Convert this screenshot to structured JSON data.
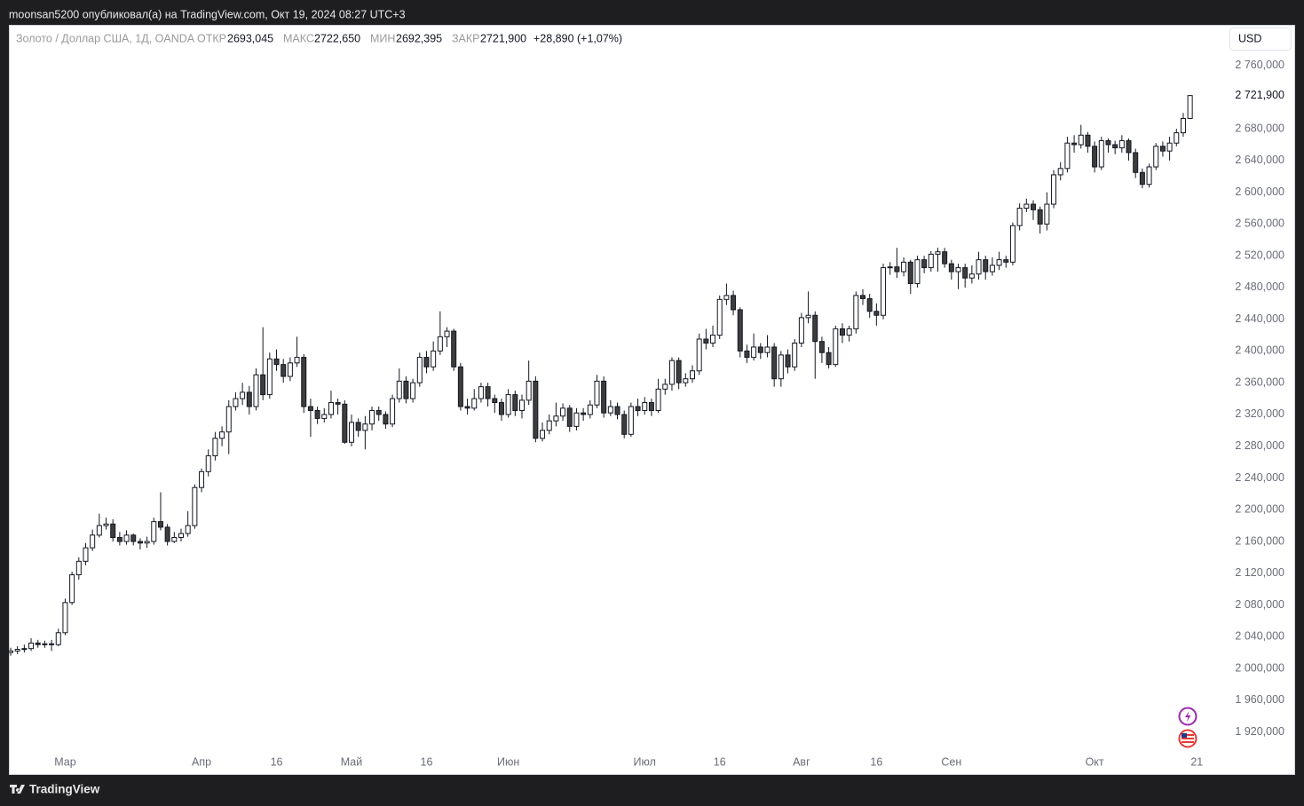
{
  "header": {
    "text": "moonsan5200 опубликовал(а) на TradingView.com, Окт 19, 2024 08:27 UTC+3"
  },
  "chart_data": {
    "type": "candlestick",
    "symbol": "Золото / Доллар США, 1Д, OANDA",
    "currency": "USD",
    "legend": {
      "open_label": "ОТКР",
      "open": {
        "value": 2693.045,
        "label": "2693,045"
      },
      "high_label": "МАКС",
      "high": {
        "value": 2722.65,
        "label": "2722,650"
      },
      "low_label": "МИН",
      "low": {
        "value": 2692.395,
        "label": "2692,395"
      },
      "close_label": "ЗАКР",
      "close": {
        "value": 2721.9,
        "label": "2721,900"
      },
      "change": {
        "value": 28.89,
        "label": "+28,890 (+1,07%)"
      }
    },
    "last_price": {
      "value": 2721.9,
      "label": "2 721,900"
    },
    "up_color": "#ffffff",
    "down_color": "#3d3d3d",
    "wick_color": "#131722",
    "grid": false,
    "open": [
      2020,
      2022,
      2024,
      2025,
      2032,
      2030,
      2031,
      2030,
      2045,
      2083,
      2118,
      2135,
      2152,
      2168,
      2180,
      2182,
      2165,
      2160,
      2168,
      2160,
      2158,
      2160,
      2185,
      2178,
      2160,
      2165,
      2170,
      2180,
      2228,
      2248,
      2268,
      2290,
      2298,
      2330,
      2340,
      2348,
      2330,
      2370,
      2345,
      2390,
      2383,
      2368,
      2385,
      2392,
      2330,
      2325,
      2315,
      2320,
      2335,
      2333,
      2285,
      2310,
      2300,
      2308,
      2325,
      2320,
      2308,
      2340,
      2362,
      2340,
      2360,
      2392,
      2380,
      2400,
      2418,
      2425,
      2380,
      2330,
      2328,
      2340,
      2355,
      2340,
      2335,
      2320,
      2345,
      2325,
      2338,
      2362,
      2290,
      2300,
      2312,
      2318,
      2328,
      2305,
      2322,
      2320,
      2332,
      2362,
      2322,
      2330,
      2320,
      2295,
      2330,
      2325,
      2335,
      2325,
      2352,
      2358,
      2388,
      2360,
      2365,
      2375,
      2415,
      2410,
      2420,
      2465,
      2470,
      2452,
      2400,
      2392,
      2405,
      2398,
      2405,
      2365,
      2395,
      2380,
      2410,
      2442,
      2445,
      2412,
      2398,
      2383,
      2428,
      2420,
      2428,
      2470,
      2466,
      2450,
      2445,
      2505,
      2506,
      2500,
      2512,
      2485,
      2515,
      2505,
      2522,
      2525,
      2510,
      2500,
      2505,
      2492,
      2497,
      2515,
      2500,
      2508,
      2515,
      2512,
      2558,
      2580,
      2585,
      2578,
      2560,
      2585,
      2622,
      2630,
      2662,
      2660,
      2672,
      2658,
      2632,
      2665,
      2660,
      2656,
      2665,
      2650,
      2625,
      2610,
      2632,
      2658,
      2652,
      2662,
      2675,
      2693.045
    ],
    "high": [
      2026,
      2028,
      2030,
      2038,
      2036,
      2035,
      2036,
      2050,
      2088,
      2122,
      2140,
      2158,
      2175,
      2195,
      2190,
      2188,
      2172,
      2174,
      2170,
      2164,
      2166,
      2190,
      2222,
      2182,
      2172,
      2176,
      2198,
      2232,
      2252,
      2276,
      2298,
      2305,
      2338,
      2348,
      2360,
      2356,
      2378,
      2430,
      2398,
      2402,
      2390,
      2392,
      2418,
      2396,
      2340,
      2330,
      2328,
      2350,
      2340,
      2338,
      2320,
      2315,
      2318,
      2330,
      2330,
      2324,
      2345,
      2378,
      2368,
      2365,
      2398,
      2400,
      2412,
      2450,
      2430,
      2428,
      2385,
      2340,
      2352,
      2360,
      2360,
      2345,
      2340,
      2352,
      2350,
      2345,
      2388,
      2368,
      2310,
      2320,
      2335,
      2334,
      2332,
      2328,
      2328,
      2338,
      2370,
      2368,
      2338,
      2335,
      2325,
      2335,
      2340,
      2342,
      2340,
      2365,
      2365,
      2392,
      2392,
      2372,
      2382,
      2422,
      2428,
      2432,
      2470,
      2485,
      2476,
      2455,
      2408,
      2422,
      2410,
      2420,
      2410,
      2400,
      2402,
      2415,
      2448,
      2475,
      2450,
      2418,
      2405,
      2432,
      2435,
      2432,
      2475,
      2478,
      2472,
      2460,
      2510,
      2512,
      2530,
      2518,
      2515,
      2520,
      2520,
      2526,
      2530,
      2530,
      2515,
      2510,
      2510,
      2508,
      2525,
      2520,
      2518,
      2525,
      2520,
      2562,
      2586,
      2592,
      2590,
      2582,
      2600,
      2628,
      2638,
      2670,
      2672,
      2685,
      2676,
      2664,
      2670,
      2668,
      2665,
      2672,
      2668,
      2655,
      2630,
      2636,
      2662,
      2664,
      2670,
      2680,
      2700,
      2722.65
    ],
    "low": [
      2016,
      2018,
      2020,
      2022,
      2026,
      2026,
      2022,
      2028,
      2042,
      2080,
      2112,
      2130,
      2148,
      2165,
      2175,
      2160,
      2155,
      2156,
      2155,
      2150,
      2152,
      2156,
      2174,
      2155,
      2158,
      2160,
      2166,
      2176,
      2222,
      2242,
      2262,
      2280,
      2270,
      2325,
      2332,
      2320,
      2325,
      2338,
      2340,
      2375,
      2360,
      2362,
      2380,
      2322,
      2292,
      2308,
      2310,
      2315,
      2320,
      2283,
      2280,
      2292,
      2276,
      2300,
      2312,
      2302,
      2304,
      2335,
      2334,
      2335,
      2355,
      2372,
      2375,
      2395,
      2405,
      2375,
      2325,
      2320,
      2325,
      2335,
      2330,
      2322,
      2312,
      2316,
      2318,
      2315,
      2332,
      2285,
      2286,
      2295,
      2305,
      2312,
      2298,
      2300,
      2312,
      2315,
      2328,
      2316,
      2318,
      2314,
      2290,
      2292,
      2318,
      2320,
      2318,
      2322,
      2345,
      2350,
      2352,
      2355,
      2360,
      2370,
      2402,
      2405,
      2415,
      2458,
      2445,
      2392,
      2385,
      2388,
      2390,
      2392,
      2355,
      2355,
      2372,
      2375,
      2405,
      2435,
      2365,
      2385,
      2378,
      2380,
      2410,
      2412,
      2422,
      2458,
      2442,
      2432,
      2440,
      2496,
      2492,
      2494,
      2472,
      2480,
      2498,
      2500,
      2500,
      2505,
      2490,
      2478,
      2480,
      2485,
      2490,
      2490,
      2495,
      2502,
      2505,
      2508,
      2552,
      2575,
      2565,
      2548,
      2552,
      2580,
      2615,
      2625,
      2650,
      2655,
      2650,
      2625,
      2628,
      2650,
      2648,
      2650,
      2640,
      2618,
      2605,
      2606,
      2628,
      2645,
      2640,
      2658,
      2670,
      2692.395
    ],
    "close": [
      2022,
      2024,
      2025,
      2032,
      2030,
      2031,
      2030,
      2045,
      2083,
      2118,
      2135,
      2152,
      2168,
      2180,
      2182,
      2165,
      2160,
      2168,
      2160,
      2158,
      2160,
      2185,
      2178,
      2160,
      2165,
      2170,
      2180,
      2228,
      2248,
      2268,
      2290,
      2298,
      2330,
      2340,
      2348,
      2330,
      2370,
      2345,
      2390,
      2383,
      2368,
      2385,
      2392,
      2330,
      2325,
      2315,
      2320,
      2335,
      2333,
      2285,
      2310,
      2300,
      2308,
      2325,
      2320,
      2308,
      2340,
      2362,
      2340,
      2360,
      2392,
      2380,
      2400,
      2418,
      2425,
      2380,
      2330,
      2328,
      2340,
      2355,
      2340,
      2335,
      2320,
      2345,
      2325,
      2338,
      2362,
      2290,
      2300,
      2312,
      2318,
      2328,
      2305,
      2322,
      2320,
      2332,
      2362,
      2322,
      2330,
      2320,
      2295,
      2330,
      2325,
      2335,
      2325,
      2352,
      2358,
      2388,
      2360,
      2365,
      2375,
      2415,
      2410,
      2420,
      2465,
      2470,
      2452,
      2400,
      2392,
      2405,
      2398,
      2405,
      2365,
      2395,
      2380,
      2410,
      2442,
      2445,
      2412,
      2398,
      2383,
      2428,
      2420,
      2428,
      2470,
      2466,
      2450,
      2445,
      2505,
      2506,
      2500,
      2512,
      2485,
      2515,
      2505,
      2522,
      2525,
      2510,
      2500,
      2505,
      2492,
      2497,
      2515,
      2500,
      2508,
      2515,
      2512,
      2558,
      2580,
      2585,
      2578,
      2560,
      2585,
      2622,
      2630,
      2662,
      2660,
      2672,
      2658,
      2632,
      2665,
      2660,
      2656,
      2665,
      2650,
      2625,
      2610,
      2632,
      2658,
      2652,
      2662,
      2675,
      2693,
      2721.9
    ],
    "ylim": [
      1896,
      2811
    ],
    "yticks": [
      {
        "value": 1920,
        "label": "1 920,000"
      },
      {
        "value": 1960,
        "label": "1 960,000"
      },
      {
        "value": 2000,
        "label": "2 000,000"
      },
      {
        "value": 2040,
        "label": "2 040,000"
      },
      {
        "value": 2080,
        "label": "2 080,000"
      },
      {
        "value": 2120,
        "label": "2 120,000"
      },
      {
        "value": 2160,
        "label": "2 160,000"
      },
      {
        "value": 2200,
        "label": "2 200,000"
      },
      {
        "value": 2240,
        "label": "2 240,000"
      },
      {
        "value": 2280,
        "label": "2 280,000"
      },
      {
        "value": 2320,
        "label": "2 320,000"
      },
      {
        "value": 2360,
        "label": "2 360,000"
      },
      {
        "value": 2400,
        "label": "2 400,000"
      },
      {
        "value": 2440,
        "label": "2 440,000"
      },
      {
        "value": 2480,
        "label": "2 480,000"
      },
      {
        "value": 2520,
        "label": "2 520,000"
      },
      {
        "value": 2560,
        "label": "2 560,000"
      },
      {
        "value": 2600,
        "label": "2 600,000"
      },
      {
        "value": 2640,
        "label": "2 640,000"
      },
      {
        "value": 2680,
        "label": "2 680,000"
      },
      {
        "value": 2760,
        "label": "2 760,000"
      }
    ],
    "xticks": [
      {
        "value": 8,
        "label": "Мар"
      },
      {
        "value": 28,
        "label": "Апр"
      },
      {
        "value": 39,
        "label": "16"
      },
      {
        "value": 50,
        "label": "Май"
      },
      {
        "value": 61,
        "label": "16"
      },
      {
        "value": 73,
        "label": "Июн"
      },
      {
        "value": 93,
        "label": "Июл"
      },
      {
        "value": 104,
        "label": "16"
      },
      {
        "value": 116,
        "label": "Авг"
      },
      {
        "value": 127,
        "label": "16"
      },
      {
        "value": 138,
        "label": "Сен"
      },
      {
        "value": 159,
        "label": "Окт"
      },
      {
        "value": 174,
        "label": "21"
      }
    ]
  },
  "footer": {
    "brand": "TradingView"
  }
}
